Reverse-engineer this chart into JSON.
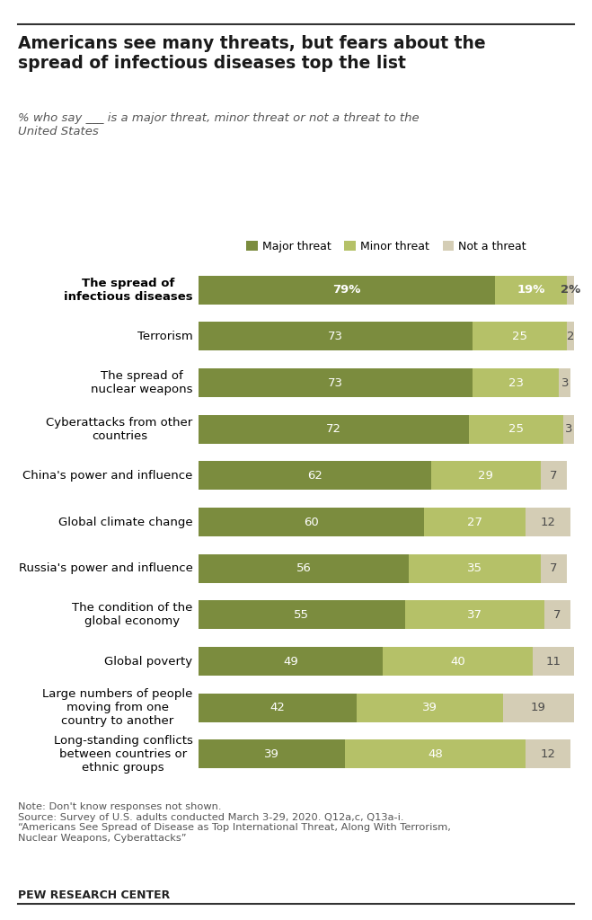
{
  "title": "Americans see many threats, but fears about the\nspread of infectious diseases top the list",
  "subtitle": "% who say ___ is a major threat, minor threat or not a threat to the\nUnited States",
  "categories": [
    "The spread of\ninfectious diseases",
    "Terrorism",
    "The spread of\nnuclear weapons",
    "Cyberattacks from other\ncountries",
    "China's power and influence",
    "Global climate change",
    "Russia's power and influence",
    "The condition of the\nglobal economy",
    "Global poverty",
    "Large numbers of people\nmoving from one\ncountry to another",
    "Long-standing conflicts\nbetween countries or\nethnic groups"
  ],
  "major": [
    79,
    73,
    73,
    72,
    62,
    60,
    56,
    55,
    49,
    42,
    39
  ],
  "minor": [
    19,
    25,
    23,
    25,
    29,
    27,
    35,
    37,
    40,
    39,
    48
  ],
  "not_threat": [
    2,
    2,
    3,
    3,
    7,
    12,
    7,
    7,
    11,
    19,
    12
  ],
  "major_labels": [
    "79%",
    "73",
    "73",
    "72",
    "62",
    "60",
    "56",
    "55",
    "49",
    "42",
    "39"
  ],
  "minor_labels": [
    "19%",
    "25",
    "23",
    "25",
    "29",
    "27",
    "35",
    "37",
    "40",
    "39",
    "48"
  ],
  "not_labels": [
    "2%",
    "2",
    "3",
    "3",
    "7",
    "12",
    "7",
    "7",
    "11",
    "19",
    "12"
  ],
  "color_major": "#7b8c3e",
  "color_minor": "#b5c168",
  "color_not": "#d4cdb5",
  "note_line1": "Note: Don't know responses not shown.",
  "note_line2": "Source: Survey of U.S. adults conducted March 3-29, 2020. Q12a,c, Q13a-i.",
  "note_line3": "“Americans See Spread of Disease as Top International Threat, Along With Terrorism,",
  "note_line4": "Nuclear Weapons, Cyberattacks”",
  "source_bold": "PEW RESEARCH CENTER",
  "legend_labels": [
    "Major threat",
    "Minor threat",
    "Not a threat"
  ],
  "bg_color": "#ffffff"
}
